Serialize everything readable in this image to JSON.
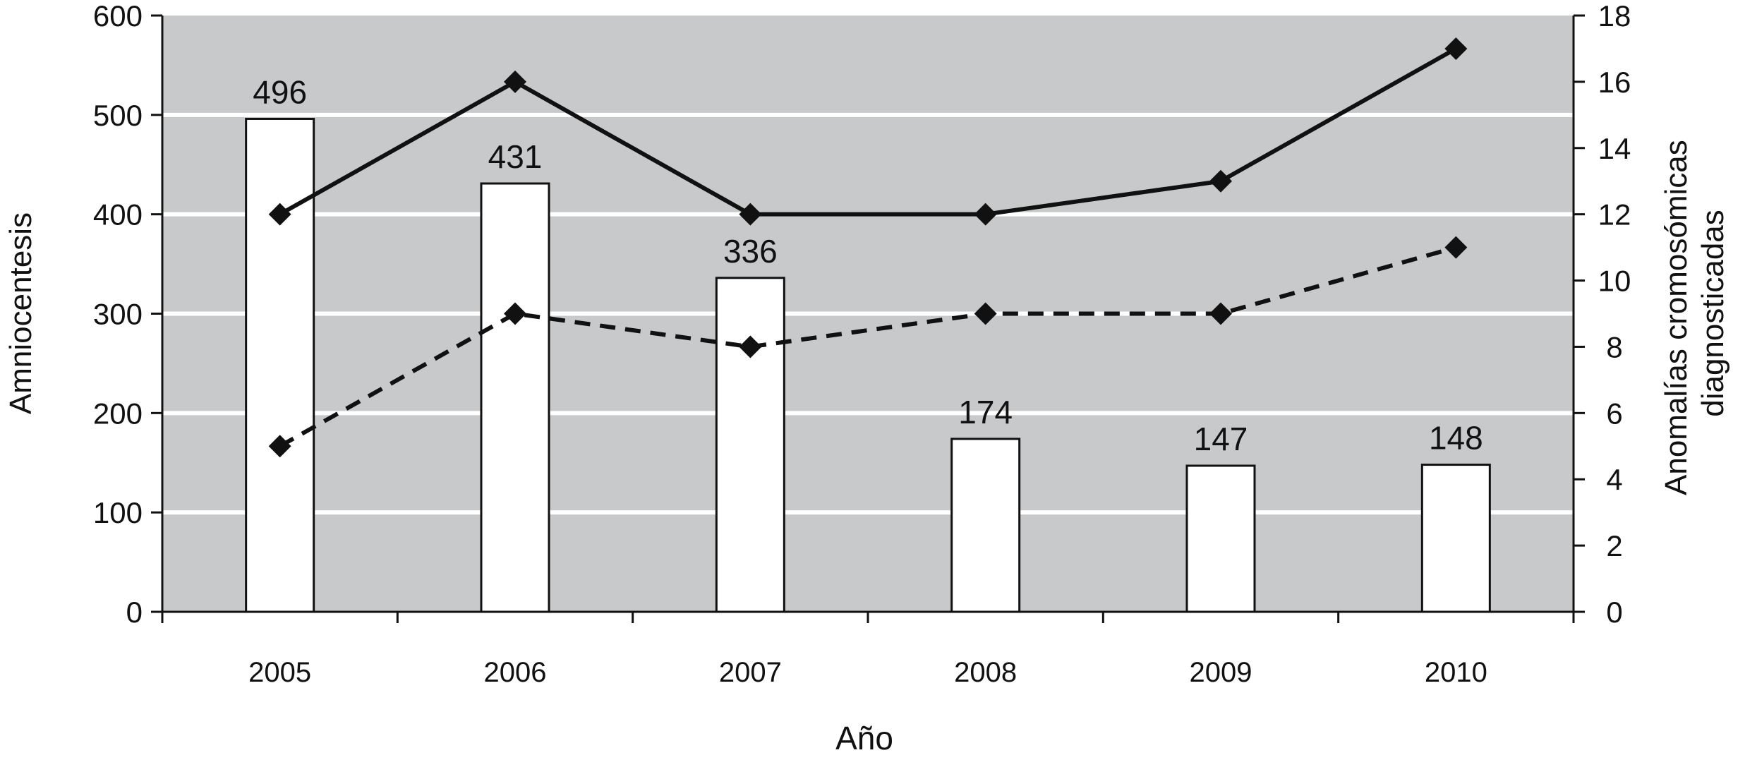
{
  "chart_data": {
    "type": "bar",
    "title": "",
    "xlabel": "Año",
    "ylabel_left": "Amniocentesis",
    "ylabel_right_lines": [
      "Anomalías cromosómicas",
      "diagnosticadas"
    ],
    "categories": [
      "2005",
      "2006",
      "2007",
      "2008",
      "2009",
      "2010"
    ],
    "bars": {
      "values": [
        496,
        431,
        336,
        174,
        147,
        148
      ],
      "data_labels": [
        "496",
        "431",
        "336",
        "174",
        "147",
        "148"
      ]
    },
    "lines": [
      {
        "style": "solid",
        "axis": "right",
        "values": [
          12,
          16,
          12,
          12,
          13,
          17
        ]
      },
      {
        "style": "dashed",
        "axis": "right",
        "values": [
          5,
          9,
          8,
          9,
          9,
          11
        ]
      }
    ],
    "y_left": {
      "min": 0,
      "max": 600,
      "ticks": [
        "0",
        "100",
        "200",
        "300",
        "400",
        "500",
        "600"
      ]
    },
    "y_right": {
      "min": 0,
      "max": 18,
      "ticks": [
        "0",
        "2",
        "4",
        "6",
        "8",
        "10",
        "12",
        "14",
        "16",
        "18"
      ]
    },
    "grid": true,
    "legend": "none",
    "colors": {
      "plot_background": "#c8c9cb",
      "gridline": "#ffffff",
      "bar_fill": "#ffffff",
      "bar_stroke": "#111111",
      "line": "#111111"
    }
  }
}
